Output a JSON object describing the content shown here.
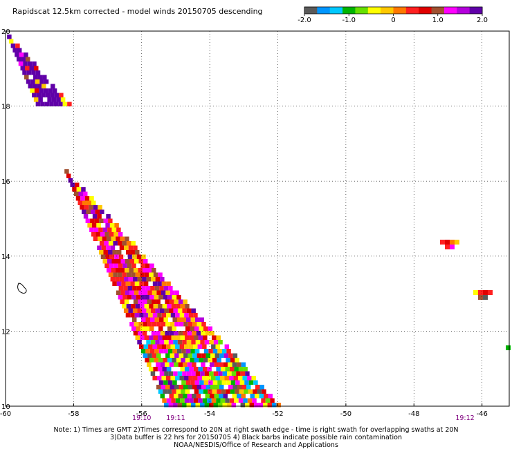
{
  "title": "Rapidscat 12.5km corrected - model winds 20150705 descending",
  "colorbar": {
    "colors": [
      "#5a5a5a",
      "#0096ff",
      "#00c8ff",
      "#00b400",
      "#66e000",
      "#ffff00",
      "#ffc800",
      "#ff7800",
      "#ff2020",
      "#e00000",
      "#a05030",
      "#ff00ff",
      "#b400dc",
      "#6000a8"
    ],
    "tick_labels": [
      "-2.0",
      "-1.0",
      "0",
      "1.0",
      "2.0"
    ],
    "min": -2.0,
    "max": 2.0
  },
  "axes": {
    "x_ticks": [
      "-60",
      "-58",
      "-56",
      "-54",
      "-52",
      "-50",
      "-48",
      "-46"
    ],
    "y_ticks": [
      "20",
      "18",
      "16",
      "14",
      "12",
      "10"
    ],
    "lon_range": [
      -60,
      -45.2
    ],
    "lat_range": [
      10,
      20
    ],
    "grid": "dotted"
  },
  "time_labels": [
    {
      "text": "19:10",
      "lon": -56
    },
    {
      "text": "19:11",
      "lon": -55
    },
    {
      "text": "19:12",
      "lon": -46.5
    }
  ],
  "swath": {
    "description_values": "wind speed difference (scatterometer minus model), colored cells along descending swath",
    "edge_left": [
      [
        20,
        -60.0
      ],
      [
        10,
        -55.3
      ]
    ],
    "edge_right": [
      [
        18.1,
        -60.0
      ],
      [
        10,
        -51.9
      ]
    ]
  },
  "notes": [
    "Note: 1) Times are GMT 2)Times correspond to 20N at right swath edge - time is right swath for overlapping swaths at 20N",
    "3)Data buffer is 22 hrs for 20150705 4) Black barbs indicate possible rain contamination",
    "NOAA/NESDIS/Office of Research and Applications"
  ]
}
